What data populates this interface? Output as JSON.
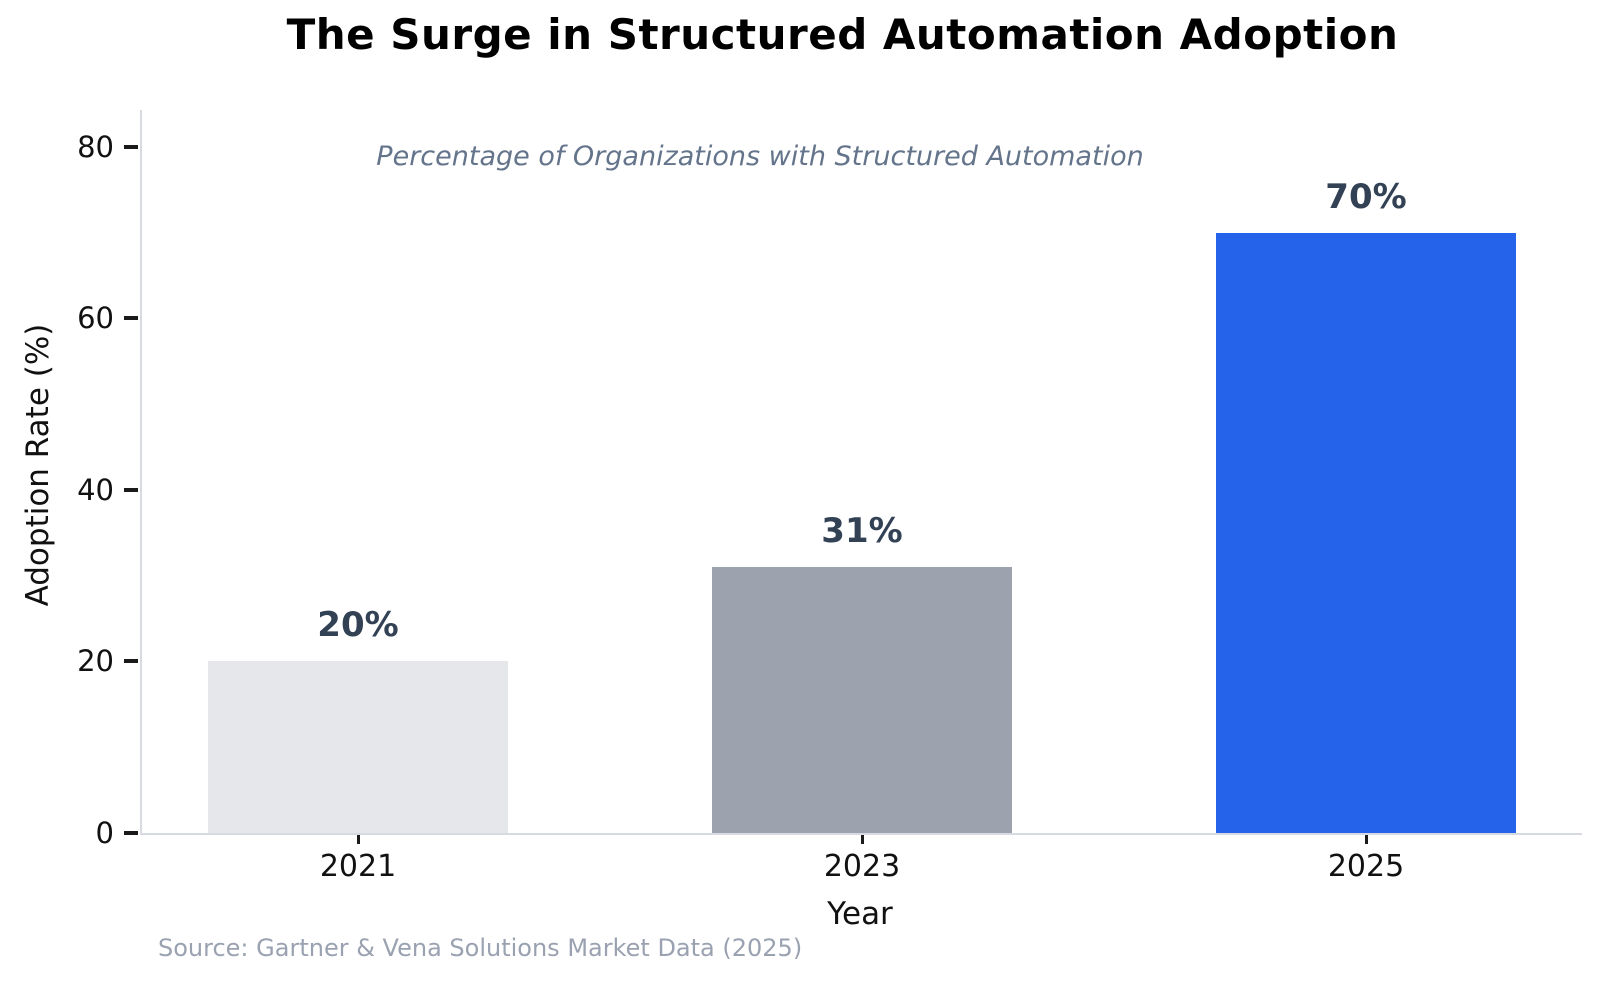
{
  "chart_data": {
    "type": "bar",
    "title": "The Surge in Structured Automation Adoption",
    "subtitle": "Percentage of Organizations with Structured Automation",
    "categories": [
      "2021",
      "2023",
      "2025"
    ],
    "values": [
      20,
      31,
      70
    ],
    "value_labels": [
      "20%",
      "31%",
      "70%"
    ],
    "bar_colors": [
      "#e5e7eb",
      "#9ca3af",
      "#2563eb"
    ],
    "value_label_color": "#334155",
    "xlabel": "Year",
    "ylabel": "Adoption Rate (%)",
    "yticks": [
      0,
      20,
      40,
      60,
      80
    ],
    "ylim": [
      0,
      84.3
    ],
    "grid": false,
    "legend": null,
    "source": "Source: Gartner & Vena Solutions Market Data (2025)"
  }
}
